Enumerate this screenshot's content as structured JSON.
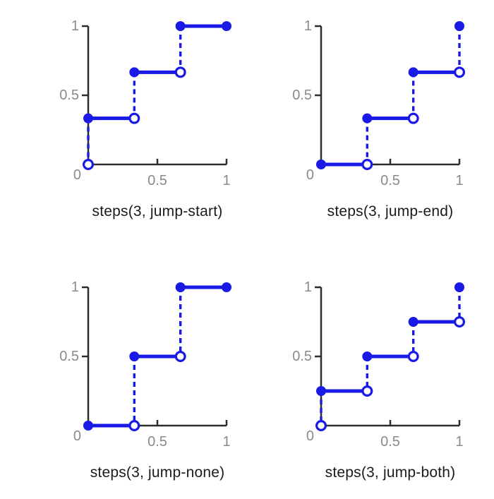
{
  "figure": {
    "background": "#ffffff",
    "colors": {
      "accent": "#1a1ae6",
      "axis": "#2d2d2d",
      "tick_label": "#8a8a8a",
      "caption": "#1a1a1a",
      "open_point_fill": "#ffffff"
    }
  },
  "chart_data": [
    {
      "type": "step",
      "caption": "steps(3, jump-start)",
      "xlim": [
        0,
        1
      ],
      "ylim": [
        0,
        1
      ],
      "x_ticks": [
        {
          "v": 0.5,
          "label": "0.5"
        },
        {
          "v": 1,
          "label": "1"
        }
      ],
      "y_ticks": [
        {
          "v": 0,
          "label": "0"
        },
        {
          "v": 0.5,
          "label": "0.5"
        },
        {
          "v": 1,
          "label": "1"
        }
      ],
      "points": [
        {
          "x": 0,
          "y": 0,
          "style": "open"
        }
      ],
      "risers": [
        {
          "x": 0,
          "y1": 0,
          "y2": 0.3333
        },
        {
          "x": 0.3333,
          "y1": 0.3333,
          "y2": 0.6667
        },
        {
          "x": 0.6667,
          "y1": 0.6667,
          "y2": 1
        }
      ],
      "segments": [
        {
          "y": 0.3333,
          "x1": 0,
          "x2": 0.3333,
          "left": "closed",
          "right": "open"
        },
        {
          "y": 0.6667,
          "x1": 0.3333,
          "x2": 0.6667,
          "left": "closed",
          "right": "open"
        },
        {
          "y": 1,
          "x1": 0.6667,
          "x2": 1,
          "left": "closed",
          "right": "closed"
        }
      ]
    },
    {
      "type": "step",
      "caption": "steps(3, jump-end)",
      "xlim": [
        0,
        1
      ],
      "ylim": [
        0,
        1
      ],
      "x_ticks": [
        {
          "v": 0.5,
          "label": "0.5"
        },
        {
          "v": 1,
          "label": "1"
        }
      ],
      "y_ticks": [
        {
          "v": 0,
          "label": "0"
        },
        {
          "v": 0.5,
          "label": "0.5"
        },
        {
          "v": 1,
          "label": "1"
        }
      ],
      "points": [
        {
          "x": 1,
          "y": 1,
          "style": "closed"
        }
      ],
      "risers": [
        {
          "x": 0.3333,
          "y1": 0,
          "y2": 0.3333
        },
        {
          "x": 0.6667,
          "y1": 0.3333,
          "y2": 0.6667
        },
        {
          "x": 1,
          "y1": 0.6667,
          "y2": 1
        }
      ],
      "segments": [
        {
          "y": 0,
          "x1": 0,
          "x2": 0.3333,
          "left": "closed",
          "right": "open"
        },
        {
          "y": 0.3333,
          "x1": 0.3333,
          "x2": 0.6667,
          "left": "closed",
          "right": "open"
        },
        {
          "y": 0.6667,
          "x1": 0.6667,
          "x2": 1,
          "left": "closed",
          "right": "open"
        }
      ]
    },
    {
      "type": "step",
      "caption": "steps(3, jump-none)",
      "xlim": [
        0,
        1
      ],
      "ylim": [
        0,
        1
      ],
      "x_ticks": [
        {
          "v": 0.5,
          "label": "0.5"
        },
        {
          "v": 1,
          "label": "1"
        }
      ],
      "y_ticks": [
        {
          "v": 0,
          "label": "0"
        },
        {
          "v": 0.5,
          "label": "0.5"
        },
        {
          "v": 1,
          "label": "1"
        }
      ],
      "points": [],
      "risers": [
        {
          "x": 0.3333,
          "y1": 0,
          "y2": 0.5
        },
        {
          "x": 0.6667,
          "y1": 0.5,
          "y2": 1
        }
      ],
      "segments": [
        {
          "y": 0,
          "x1": 0,
          "x2": 0.3333,
          "left": "closed",
          "right": "open"
        },
        {
          "y": 0.5,
          "x1": 0.3333,
          "x2": 0.6667,
          "left": "closed",
          "right": "open"
        },
        {
          "y": 1,
          "x1": 0.6667,
          "x2": 1,
          "left": "closed",
          "right": "closed"
        }
      ]
    },
    {
      "type": "step",
      "caption": "steps(3, jump-both)",
      "xlim": [
        0,
        1
      ],
      "ylim": [
        0,
        1
      ],
      "x_ticks": [
        {
          "v": 0.5,
          "label": "0.5"
        },
        {
          "v": 1,
          "label": "1"
        }
      ],
      "y_ticks": [
        {
          "v": 0,
          "label": "0"
        },
        {
          "v": 0.5,
          "label": "0.5"
        },
        {
          "v": 1,
          "label": "1"
        }
      ],
      "points": [
        {
          "x": 0,
          "y": 0,
          "style": "open"
        },
        {
          "x": 1,
          "y": 1,
          "style": "closed"
        }
      ],
      "risers": [
        {
          "x": 0,
          "y1": 0,
          "y2": 0.25
        },
        {
          "x": 0.3333,
          "y1": 0.25,
          "y2": 0.5
        },
        {
          "x": 0.6667,
          "y1": 0.5,
          "y2": 0.75
        },
        {
          "x": 1,
          "y1": 0.75,
          "y2": 1
        }
      ],
      "segments": [
        {
          "y": 0.25,
          "x1": 0,
          "x2": 0.3333,
          "left": "closed",
          "right": "open"
        },
        {
          "y": 0.5,
          "x1": 0.3333,
          "x2": 0.6667,
          "left": "closed",
          "right": "open"
        },
        {
          "y": 0.75,
          "x1": 0.6667,
          "x2": 1,
          "left": "closed",
          "right": "open"
        }
      ]
    }
  ]
}
